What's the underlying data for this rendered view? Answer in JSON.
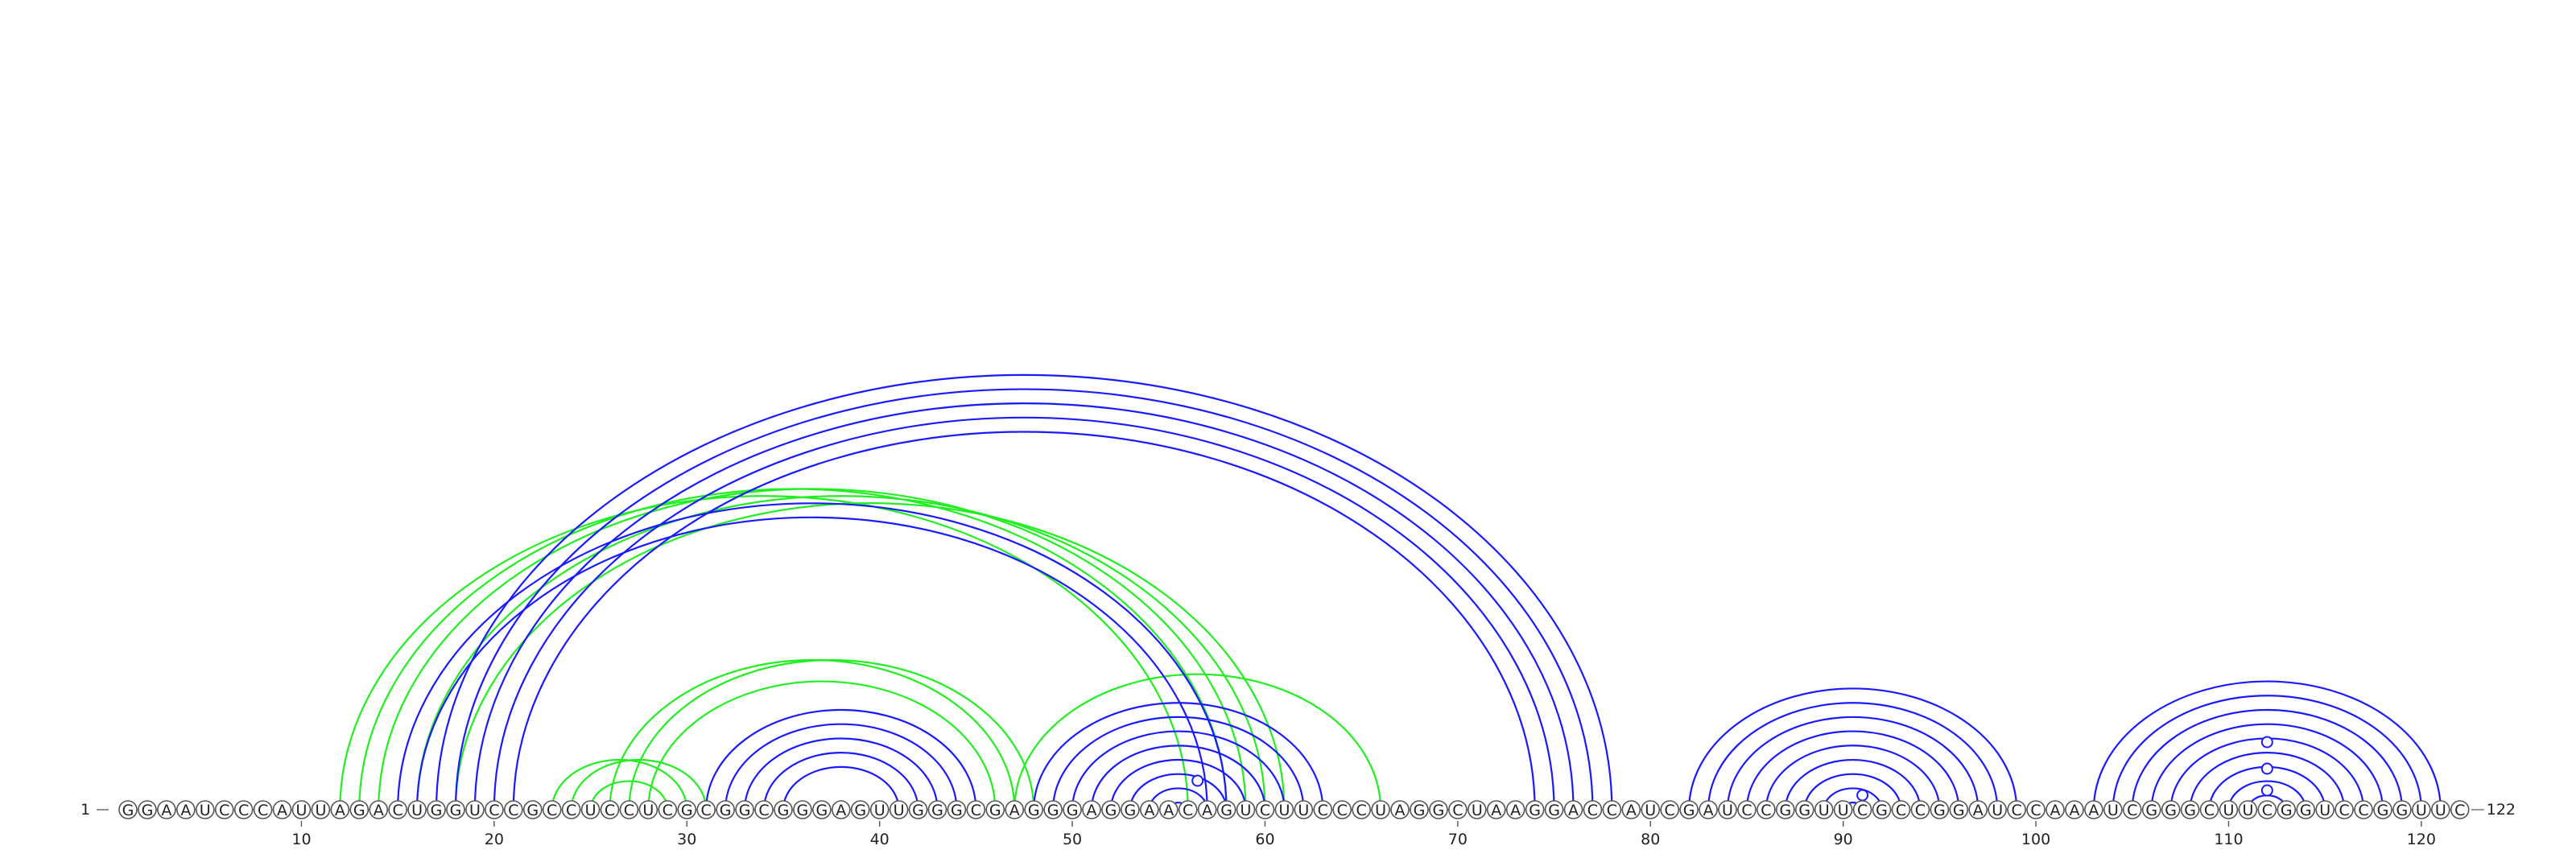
{
  "sequence": "GGAAUCCCAUUAGACUGGUCCGCCUCCUCGCGGCGGGAGUUGGGCGAGGGAGGAACAGUCUUCCCUAGGCUAAGGACCAUCGAUCCGGUUCGCCGGAUCCAAAUCGGGCUUCGGUCCGGUUC",
  "start_label": "1",
  "end_label": "122",
  "tick_labels": [
    "10",
    "20",
    "30",
    "40",
    "50",
    "60",
    "70",
    "80",
    "90",
    "100",
    "110",
    "120"
  ],
  "colors": {
    "blue": "#1a1aff",
    "green": "#22ee22"
  },
  "chart_data": {
    "type": "arc diagram",
    "length": 122,
    "blue_pairs": [
      [
        15,
        58
      ],
      [
        16,
        57
      ],
      [
        17,
        78
      ],
      [
        18,
        77
      ],
      [
        19,
        76
      ],
      [
        20,
        75
      ],
      [
        21,
        74
      ],
      [
        31,
        45
      ],
      [
        32,
        44
      ],
      [
        33,
        43
      ],
      [
        34,
        42
      ],
      [
        35,
        41
      ],
      [
        48,
        63
      ],
      [
        49,
        62
      ],
      [
        50,
        61
      ],
      [
        51,
        60
      ],
      [
        52,
        59
      ],
      [
        53,
        58
      ],
      [
        54,
        57
      ],
      [
        55,
        56
      ],
      [
        82,
        99
      ],
      [
        83,
        98
      ],
      [
        84,
        97
      ],
      [
        85,
        96
      ],
      [
        86,
        95
      ],
      [
        87,
        94
      ],
      [
        88,
        93
      ],
      [
        89,
        92
      ],
      [
        90,
        91
      ],
      [
        103,
        121
      ],
      [
        104,
        120
      ],
      [
        105,
        119
      ],
      [
        106,
        118
      ],
      [
        107,
        117
      ],
      [
        108,
        116
      ],
      [
        109,
        115
      ],
      [
        110,
        114
      ],
      [
        111,
        113
      ]
    ],
    "green_pairs": [
      [
        12,
        56
      ],
      [
        13,
        58
      ],
      [
        14,
        59
      ],
      [
        16,
        60
      ],
      [
        18,
        61
      ],
      [
        23,
        30
      ],
      [
        24,
        31
      ],
      [
        25,
        29
      ],
      [
        26,
        47
      ],
      [
        27,
        48
      ],
      [
        28,
        46
      ],
      [
        47,
        66
      ]
    ],
    "markers": [
      {
        "position": 56.5,
        "height": 0.6,
        "color": "blue"
      },
      {
        "position": 91,
        "height": 0.3,
        "color": "blue"
      },
      {
        "position": 112,
        "height": 1.4,
        "color": "blue"
      },
      {
        "position": 112,
        "height": 0.85,
        "color": "blue"
      },
      {
        "position": 112,
        "height": 0.4,
        "color": "blue"
      }
    ]
  }
}
